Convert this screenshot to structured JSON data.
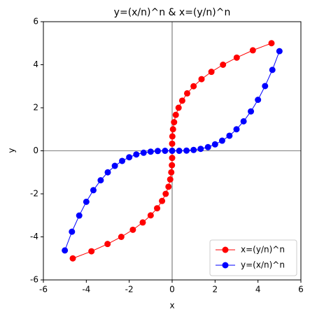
{
  "chart_data": {
    "type": "line",
    "title": "y=(x/n)^n & x=(y/n)^n",
    "x_label": "x",
    "y_label": "y",
    "xlim": [
      -6,
      6
    ],
    "ylim": [
      -6,
      6
    ],
    "xticks": [
      -6,
      -4,
      -2,
      0,
      2,
      4,
      6
    ],
    "yticks": [
      -6,
      -4,
      -2,
      0,
      2,
      4,
      6
    ],
    "zero_lines": true,
    "legend": "lower right",
    "series": [
      {
        "name": "x=(y/n)^n",
        "color": "#ff0000",
        "x": [
          -4.63,
          -3.76,
          -3.01,
          -2.37,
          -1.83,
          -1.37,
          -1,
          -0.7,
          -0.47,
          -0.3,
          -0.17,
          -0.09,
          -0.04,
          -0.01,
          0,
          0,
          0,
          0.01,
          0.04,
          0.09,
          0.17,
          0.3,
          0.47,
          0.7,
          1,
          1.37,
          1.83,
          2.37,
          3.01,
          3.76,
          4.63
        ],
        "values": [
          -5,
          -4.67,
          -4.33,
          -4,
          -3.67,
          -3.33,
          -3,
          -2.67,
          -2.33,
          -2,
          -1.67,
          -1.33,
          -1,
          -0.67,
          -0.33,
          0,
          0.33,
          0.67,
          1,
          1.33,
          1.67,
          2,
          2.33,
          2.67,
          3,
          3.33,
          3.67,
          4,
          4.33,
          4.67,
          5
        ]
      },
      {
        "name": "y=(x/n)^n",
        "color": "#0000ff",
        "x": [
          -5,
          -4.67,
          -4.33,
          -4,
          -3.67,
          -3.33,
          -3,
          -2.67,
          -2.33,
          -2,
          -1.67,
          -1.33,
          -1,
          -0.67,
          -0.33,
          0,
          0.33,
          0.67,
          1,
          1.33,
          1.67,
          2,
          2.33,
          2.67,
          3,
          3.33,
          3.67,
          4,
          4.33,
          4.67,
          5
        ],
        "values": [
          -4.63,
          -3.76,
          -3.01,
          -2.37,
          -1.83,
          -1.37,
          -1,
          -0.7,
          -0.47,
          -0.3,
          -0.17,
          -0.09,
          -0.04,
          -0.01,
          0,
          0,
          0,
          0.01,
          0.04,
          0.09,
          0.17,
          0.3,
          0.47,
          0.7,
          1,
          1.37,
          1.83,
          2.37,
          3.01,
          3.76,
          4.63
        ]
      }
    ]
  }
}
